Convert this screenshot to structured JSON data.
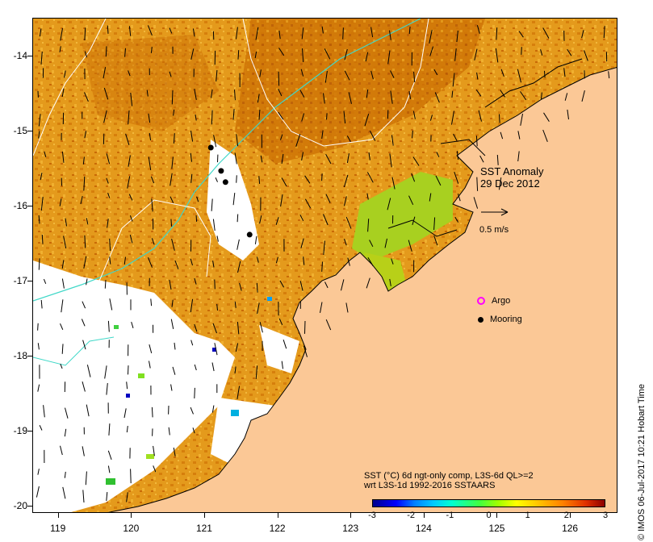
{
  "title": {
    "line1": "SST Anomaly",
    "line2": "29 Dec 2012"
  },
  "scale_arrow": {
    "label": "0.5 m/s"
  },
  "legend": {
    "argo": "Argo",
    "mooring": "Mooring"
  },
  "colorbar": {
    "title_line1": "SST (°C) 6d ngt-only comp, L3S-6d QL>=2",
    "title_line2": "wrt L3S-1d 1992-2016 SSTAARS",
    "ticks": [
      "-3",
      "-2",
      "-1",
      "0",
      "1",
      "2",
      "3"
    ],
    "range": [
      -3,
      3
    ]
  },
  "axes": {
    "lat_ticks": [
      "-14",
      "-15",
      "-16",
      "-17",
      "-18",
      "-19",
      "-20"
    ],
    "lon_ticks": [
      "119",
      "120",
      "121",
      "122",
      "123",
      "124",
      "125",
      "126"
    ],
    "lat_range": [
      -13.5,
      -20.1
    ],
    "lon_range": [
      118.65,
      126.65
    ]
  },
  "credit": "© IMOS 06-Jul-2017 10:21 Hobart Time",
  "colors": {
    "land": "#fbc896",
    "ocean_warm": "#e9a020",
    "ocean_hot": "#d27a08",
    "no_data": "#ffffff",
    "contour": "#40d8c8"
  },
  "moorings": [
    {
      "lon": 121.08,
      "lat": -15.22
    },
    {
      "lon": 121.22,
      "lat": -15.53
    },
    {
      "lon": 121.28,
      "lat": -15.68
    },
    {
      "lon": 121.61,
      "lat": -16.38
    }
  ]
}
